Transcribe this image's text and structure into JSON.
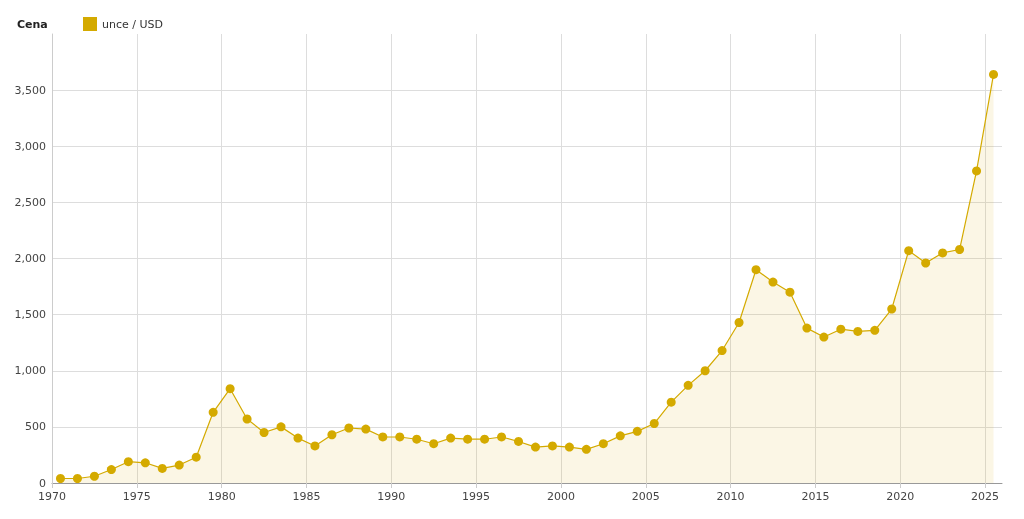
{
  "chart_data": {
    "type": "area",
    "legend_title": "Cena",
    "legend": "top left",
    "grid": true,
    "marker": "circle",
    "line_style": "solid",
    "x": [
      "1970-07",
      "1971-07",
      "1972-07",
      "1973-07",
      "1974-07",
      "1975-07",
      "1976-07",
      "1977-07",
      "1978-07",
      "1979-07",
      "1980-07",
      "1981-07",
      "1982-07",
      "1983-07",
      "1984-07",
      "1985-07",
      "1986-07",
      "1987-07",
      "1988-07",
      "1989-07",
      "1990-07",
      "1991-07",
      "1992-07",
      "1993-07",
      "1994-07",
      "1995-07",
      "1996-07",
      "1997-07",
      "1998-07",
      "1999-07",
      "2000-07",
      "2001-07",
      "2002-07",
      "2003-07",
      "2004-07",
      "2005-07",
      "2006-07",
      "2007-07",
      "2008-07",
      "2009-07",
      "2010-07",
      "2011-07",
      "2012-07",
      "2013-07",
      "2014-07",
      "2015-07",
      "2016-07",
      "2017-07",
      "2018-07",
      "2019-07",
      "2020-07",
      "2021-07",
      "2022-07",
      "2023-07",
      "2024-07",
      "2025-07"
    ],
    "series": [
      {
        "name": "unce / USD",
        "color": "#d4aa00",
        "values": [
          40,
          40,
          60,
          120,
          190,
          180,
          130,
          160,
          230,
          630,
          840,
          570,
          450,
          500,
          400,
          330,
          430,
          490,
          480,
          410,
          410,
          390,
          350,
          400,
          390,
          390,
          410,
          370,
          320,
          330,
          320,
          300,
          350,
          420,
          460,
          530,
          720,
          870,
          1000,
          1180,
          1430,
          1900,
          1790,
          1700,
          1380,
          1300,
          1370,
          1350,
          1360,
          1550,
          2070,
          1960,
          2050,
          2080,
          2780,
          3640
        ]
      }
    ],
    "xlim": [
      "1970",
      "2026"
    ],
    "xticks": [
      "1970",
      "1975",
      "1980",
      "1985",
      "1990",
      "1995",
      "2000",
      "2005",
      "2010",
      "2015",
      "2020",
      "2025"
    ],
    "ylim": [
      0,
      4000
    ],
    "yticks": [
      0,
      {
        "value": 500,
        "label": "500"
      },
      {
        "value": 1000,
        "label": "1,000"
      },
      {
        "value": 1500,
        "label": "1,500"
      },
      {
        "value": 2000,
        "label": "2,000"
      },
      {
        "value": 2500,
        "label": "2,500"
      },
      {
        "value": 3000,
        "label": "3,000"
      },
      {
        "value": 3500,
        "label": "3,500"
      }
    ]
  }
}
